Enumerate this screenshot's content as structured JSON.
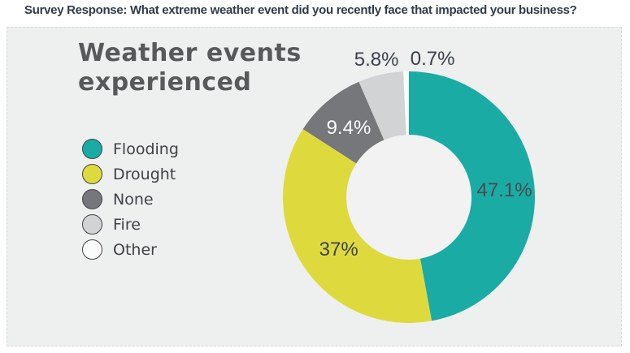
{
  "header": {
    "title": "Survey Response: What extreme weather event did you recently face that impacted your business?"
  },
  "chart_data": {
    "type": "pie",
    "subtype": "donut",
    "title": "Weather events experienced",
    "categories": [
      "Flooding",
      "Drought",
      "None",
      "Fire",
      "Other"
    ],
    "values": [
      47.1,
      37,
      9.4,
      5.8,
      0.7
    ],
    "labels": [
      "47.1%",
      "37%",
      "9.4%",
      "5.8%",
      "0.7%"
    ],
    "unit": "%",
    "colors": [
      "#1babа5",
      "#dedа3e",
      "#75777b",
      "#d2d3d4",
      "#fbfbfb"
    ],
    "slice_colors": {
      "flooding": "#1baba5",
      "drought": "#deda3e",
      "none": "#75777b",
      "fire": "#d2d3d4",
      "other": "#fbfbfb"
    },
    "label_colors": [
      "#4a4a52",
      "#3c434e",
      "#ffffff",
      "#3b414b",
      "#3b414b"
    ],
    "legend_position": "left",
    "direction": "clockwise",
    "start_angle_deg": 0,
    "inner_radius_ratio": 0.5,
    "background": "#eeefef"
  }
}
